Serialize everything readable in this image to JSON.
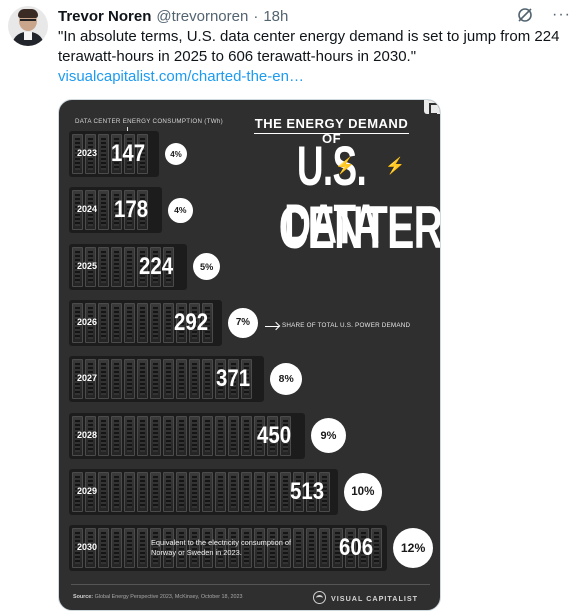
{
  "tweet": {
    "author_name": "Trevor Noren",
    "handle": "@trevornoren",
    "separator": "·",
    "time": "18h",
    "text": "\"In absolute terms, U.S. data center energy demand is set to jump from 224 terawatt-hours in 2025 to 606 terawatt-hours in 2030.\"",
    "link": "visualcapitalist.com/charted-the-en…",
    "more_label": "···"
  },
  "infographic": {
    "subtitle": "DATA CENTER ENERGY CONSUMPTION (TWh)",
    "title_top": "THE ENERGY DEMAND OF",
    "title_line1": "U.S. DATA",
    "title_line2": "CENTERS",
    "share_label": "SHARE OF TOTAL U.S. POWER DEMAND",
    "equivalent_note": "Equivalent to the electricity consumption of Norway or Sweden in 2023.",
    "source_label": "Source:",
    "source_text": "Global Energy Perspective 2023, McKinsey, October 18, 2023",
    "brand": "VISUAL CAPITALIST"
  },
  "chart_data": {
    "type": "bar",
    "orientation": "horizontal",
    "title": "THE ENERGY DEMAND OF U.S. DATA CENTERS",
    "subtitle": "DATA CENTER ENERGY CONSUMPTION (TWh)",
    "categories": [
      "2023",
      "2024",
      "2025",
      "2026",
      "2027",
      "2028",
      "2029",
      "2030"
    ],
    "values": [
      147,
      178,
      224,
      292,
      371,
      450,
      513,
      606
    ],
    "share_labels": [
      "4%",
      "4%",
      "5%",
      "7%",
      "8%",
      "9%",
      "10%",
      "12%"
    ],
    "share_label_name": "SHARE OF TOTAL U.S. POWER DEMAND",
    "grid": false
  }
}
